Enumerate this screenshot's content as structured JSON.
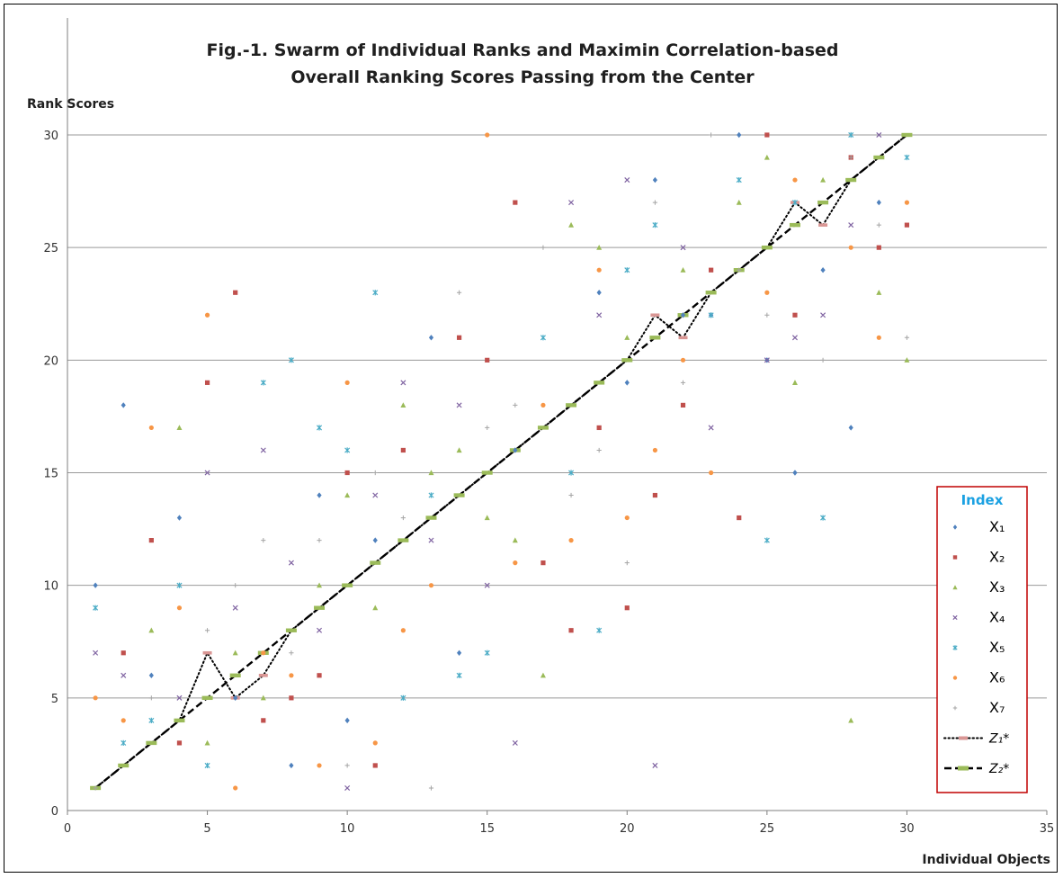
{
  "chart_data": {
    "type": "scatter",
    "title": [
      "Fig.-1. Swarm of Individual Ranks and Maximin Correlation-based",
      "Overall Ranking Scores Passing from the Center"
    ],
    "xlabel": "Individual Objects",
    "ylabel": "Rank Scores",
    "xlim": [
      0,
      35
    ],
    "ylim": [
      0,
      30
    ],
    "xticks": [
      0,
      5,
      10,
      15,
      20,
      25,
      30,
      35
    ],
    "yticks": [
      0,
      5,
      10,
      15,
      20,
      25,
      30
    ],
    "grid": "horizontal",
    "legend": {
      "title": "Index",
      "placement": "right",
      "entries": [
        "X₁",
        "X₂",
        "X₃",
        "X₄",
        "X₅",
        "X₆",
        "X₇",
        "Z₁*",
        "Z₂*"
      ]
    },
    "series": [
      {
        "name": "X1",
        "marker": "diamond",
        "color": "#4f81bd",
        "points": [
          [
            1,
            10
          ],
          [
            2,
            18
          ],
          [
            3,
            6
          ],
          [
            4,
            13
          ],
          [
            6,
            5
          ],
          [
            8,
            2
          ],
          [
            9,
            14
          ],
          [
            10,
            4
          ],
          [
            11,
            12
          ],
          [
            13,
            21
          ],
          [
            14,
            7
          ],
          [
            16,
            16
          ],
          [
            19,
            23
          ],
          [
            20,
            19
          ],
          [
            21,
            28
          ],
          [
            22,
            22
          ],
          [
            23,
            22
          ],
          [
            24,
            30
          ],
          [
            25,
            20
          ],
          [
            26,
            15
          ],
          [
            27,
            24
          ],
          [
            28,
            17
          ],
          [
            29,
            27
          ]
        ]
      },
      {
        "name": "X2",
        "marker": "square",
        "color": "#c0504d",
        "points": [
          [
            2,
            7
          ],
          [
            3,
            12
          ],
          [
            4,
            3
          ],
          [
            5,
            19
          ],
          [
            6,
            23
          ],
          [
            7,
            4
          ],
          [
            8,
            5
          ],
          [
            9,
            6
          ],
          [
            10,
            15
          ],
          [
            11,
            2
          ],
          [
            12,
            16
          ],
          [
            14,
            21
          ],
          [
            15,
            20
          ],
          [
            16,
            27
          ],
          [
            17,
            11
          ],
          [
            18,
            8
          ],
          [
            19,
            17
          ],
          [
            20,
            9
          ],
          [
            21,
            14
          ],
          [
            22,
            18
          ],
          [
            23,
            24
          ],
          [
            24,
            13
          ],
          [
            25,
            30
          ],
          [
            26,
            22
          ],
          [
            28,
            29
          ],
          [
            29,
            25
          ],
          [
            30,
            26
          ]
        ]
      },
      {
        "name": "X3",
        "marker": "triangle",
        "color": "#9bbb59",
        "points": [
          [
            3,
            8
          ],
          [
            4,
            17
          ],
          [
            5,
            3
          ],
          [
            6,
            7
          ],
          [
            7,
            5
          ],
          [
            9,
            10
          ],
          [
            10,
            14
          ],
          [
            11,
            9
          ],
          [
            12,
            18
          ],
          [
            13,
            15
          ],
          [
            14,
            16
          ],
          [
            15,
            13
          ],
          [
            16,
            12
          ],
          [
            17,
            6
          ],
          [
            18,
            26
          ],
          [
            19,
            25
          ],
          [
            20,
            21
          ],
          [
            22,
            24
          ],
          [
            24,
            27
          ],
          [
            25,
            29
          ],
          [
            26,
            19
          ],
          [
            27,
            28
          ],
          [
            28,
            4
          ],
          [
            29,
            23
          ],
          [
            30,
            20
          ]
        ]
      },
      {
        "name": "X4",
        "marker": "x",
        "color": "#8064a2",
        "points": [
          [
            1,
            7
          ],
          [
            2,
            6
          ],
          [
            4,
            5
          ],
          [
            5,
            15
          ],
          [
            6,
            9
          ],
          [
            7,
            16
          ],
          [
            8,
            11
          ],
          [
            9,
            8
          ],
          [
            10,
            1
          ],
          [
            11,
            14
          ],
          [
            12,
            19
          ],
          [
            13,
            12
          ],
          [
            14,
            18
          ],
          [
            15,
            10
          ],
          [
            16,
            3
          ],
          [
            18,
            27
          ],
          [
            19,
            22
          ],
          [
            20,
            28
          ],
          [
            21,
            2
          ],
          [
            22,
            25
          ],
          [
            23,
            17
          ],
          [
            25,
            20
          ],
          [
            26,
            21
          ],
          [
            27,
            22
          ],
          [
            28,
            26
          ],
          [
            29,
            30
          ]
        ]
      },
      {
        "name": "X5",
        "marker": "star",
        "color": "#4bacc6",
        "points": [
          [
            1,
            9
          ],
          [
            2,
            3
          ],
          [
            3,
            4
          ],
          [
            4,
            10
          ],
          [
            5,
            2
          ],
          [
            7,
            19
          ],
          [
            8,
            20
          ],
          [
            9,
            17
          ],
          [
            10,
            16
          ],
          [
            11,
            23
          ],
          [
            12,
            5
          ],
          [
            13,
            14
          ],
          [
            14,
            6
          ],
          [
            15,
            7
          ],
          [
            17,
            21
          ],
          [
            18,
            15
          ],
          [
            19,
            8
          ],
          [
            20,
            24
          ],
          [
            21,
            26
          ],
          [
            23,
            22
          ],
          [
            24,
            28
          ],
          [
            25,
            12
          ],
          [
            26,
            27
          ],
          [
            27,
            13
          ],
          [
            28,
            30
          ],
          [
            30,
            29
          ]
        ]
      },
      {
        "name": "X6",
        "marker": "circle",
        "color": "#f79646",
        "points": [
          [
            1,
            5
          ],
          [
            2,
            4
          ],
          [
            3,
            17
          ],
          [
            4,
            9
          ],
          [
            5,
            22
          ],
          [
            6,
            1
          ],
          [
            7,
            7
          ],
          [
            8,
            6
          ],
          [
            9,
            2
          ],
          [
            10,
            19
          ],
          [
            11,
            3
          ],
          [
            12,
            8
          ],
          [
            13,
            10
          ],
          [
            15,
            30
          ],
          [
            16,
            11
          ],
          [
            17,
            18
          ],
          [
            18,
            12
          ],
          [
            19,
            24
          ],
          [
            20,
            13
          ],
          [
            21,
            16
          ],
          [
            22,
            20
          ],
          [
            23,
            15
          ],
          [
            25,
            23
          ],
          [
            26,
            28
          ],
          [
            28,
            25
          ],
          [
            29,
            21
          ],
          [
            30,
            27
          ]
        ]
      },
      {
        "name": "X7",
        "marker": "plus",
        "color": "#a5a5a5",
        "points": [
          [
            1,
            1
          ],
          [
            3,
            5
          ],
          [
            5,
            8
          ],
          [
            6,
            10
          ],
          [
            7,
            12
          ],
          [
            8,
            7
          ],
          [
            9,
            12
          ],
          [
            10,
            2
          ],
          [
            11,
            15
          ],
          [
            12,
            13
          ],
          [
            13,
            1
          ],
          [
            14,
            23
          ],
          [
            15,
            17
          ],
          [
            16,
            18
          ],
          [
            17,
            25
          ],
          [
            18,
            14
          ],
          [
            19,
            16
          ],
          [
            20,
            11
          ],
          [
            21,
            27
          ],
          [
            22,
            19
          ],
          [
            23,
            30
          ],
          [
            24,
            24
          ],
          [
            25,
            22
          ],
          [
            27,
            20
          ],
          [
            28,
            29
          ],
          [
            29,
            26
          ],
          [
            30,
            21
          ]
        ]
      },
      {
        "name": "Z1*",
        "marker": "line-dotted",
        "color": "#000000",
        "values": [
          1,
          2,
          3,
          4,
          7,
          5,
          6,
          8,
          9,
          10,
          11,
          12,
          13,
          14,
          15,
          16,
          17,
          18,
          19,
          20,
          22,
          21,
          23,
          24,
          25,
          27,
          26,
          28,
          29,
          30
        ]
      },
      {
        "name": "Z2*",
        "marker": "line-dashed",
        "color": "#000000",
        "values": [
          1,
          2,
          3,
          4,
          5,
          6,
          7,
          8,
          9,
          10,
          11,
          12,
          13,
          14,
          15,
          16,
          17,
          18,
          19,
          20,
          21,
          22,
          23,
          24,
          25,
          26,
          27,
          28,
          29,
          30
        ]
      }
    ]
  }
}
